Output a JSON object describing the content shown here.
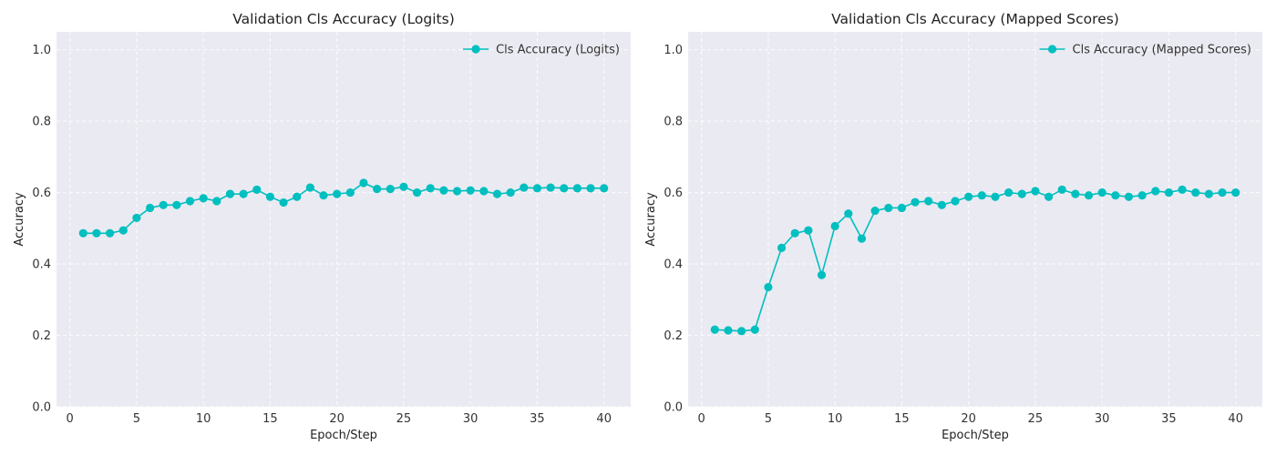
{
  "chart_data": [
    {
      "type": "line",
      "title": "Validation Cls Accuracy (Logits)",
      "xlabel": "Epoch/Step",
      "ylabel": "Accuracy",
      "xlim": [
        -1,
        42
      ],
      "ylim": [
        0,
        1.05
      ],
      "xticks": [
        0,
        5,
        10,
        15,
        20,
        25,
        30,
        35,
        40
      ],
      "yticks": [
        0.0,
        0.2,
        0.4,
        0.6,
        0.8,
        1.0
      ],
      "ytick_labels": [
        "0.0",
        "0.2",
        "0.4",
        "0.6",
        "0.8",
        "1.0"
      ],
      "grid": true,
      "legend_position": "top-right",
      "series": [
        {
          "name": "Cls Accuracy (Logits)",
          "color": "#00bfbf",
          "marker": "circle",
          "x": [
            1,
            2,
            3,
            4,
            5,
            6,
            7,
            8,
            9,
            10,
            11,
            12,
            13,
            14,
            15,
            16,
            17,
            18,
            19,
            20,
            21,
            22,
            23,
            24,
            25,
            26,
            27,
            28,
            29,
            30,
            31,
            32,
            33,
            34,
            35,
            36,
            37,
            38,
            39,
            40
          ],
          "y": [
            0.486,
            0.486,
            0.486,
            0.494,
            0.529,
            0.557,
            0.565,
            0.565,
            0.576,
            0.584,
            0.576,
            0.596,
            0.596,
            0.608,
            0.588,
            0.572,
            0.588,
            0.614,
            0.592,
            0.596,
            0.6,
            0.627,
            0.61,
            0.61,
            0.616,
            0.6,
            0.612,
            0.606,
            0.604,
            0.606,
            0.604,
            0.596,
            0.6,
            0.614,
            0.612,
            0.614,
            0.612,
            0.612,
            0.612,
            0.612
          ]
        }
      ]
    },
    {
      "type": "line",
      "title": "Validation Cls Accuracy (Mapped Scores)",
      "xlabel": "Epoch/Step",
      "ylabel": "Accuracy",
      "xlim": [
        -1,
        42
      ],
      "ylim": [
        0,
        1.05
      ],
      "xticks": [
        0,
        5,
        10,
        15,
        20,
        25,
        30,
        35,
        40
      ],
      "yticks": [
        0.0,
        0.2,
        0.4,
        0.6,
        0.8,
        1.0
      ],
      "ytick_labels": [
        "0.0",
        "0.2",
        "0.4",
        "0.6",
        "0.8",
        "1.0"
      ],
      "grid": true,
      "legend_position": "top-right",
      "series": [
        {
          "name": "Cls Accuracy (Mapped Scores)",
          "color": "#00bfbf",
          "marker": "circle",
          "x": [
            1,
            2,
            3,
            4,
            5,
            6,
            7,
            8,
            9,
            10,
            11,
            12,
            13,
            14,
            15,
            16,
            17,
            18,
            19,
            20,
            21,
            22,
            23,
            24,
            25,
            26,
            27,
            28,
            29,
            30,
            31,
            32,
            33,
            34,
            35,
            36,
            37,
            38,
            39,
            40
          ],
          "y": [
            0.216,
            0.214,
            0.212,
            0.216,
            0.335,
            0.445,
            0.486,
            0.494,
            0.369,
            0.506,
            0.541,
            0.471,
            0.549,
            0.557,
            0.557,
            0.573,
            0.576,
            0.565,
            0.576,
            0.588,
            0.592,
            0.588,
            0.6,
            0.596,
            0.604,
            0.588,
            0.608,
            0.596,
            0.592,
            0.6,
            0.592,
            0.588,
            0.592,
            0.604,
            0.6,
            0.608,
            0.6,
            0.596,
            0.6,
            0.6
          ]
        }
      ]
    }
  ]
}
